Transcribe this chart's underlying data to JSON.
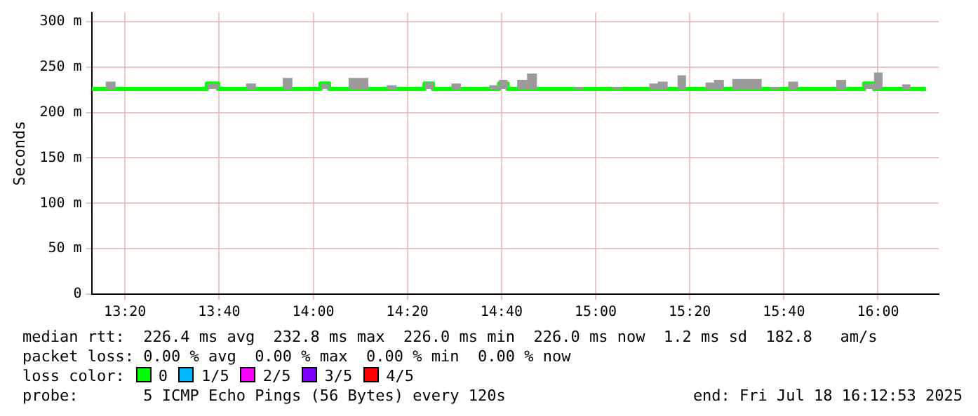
{
  "chart_data": {
    "type": "step",
    "ylabel": "Seconds",
    "xlim": [
      13.215,
      16.215
    ],
    "ylim": [
      0,
      310
    ],
    "xticks": [
      {
        "value": 13.3333,
        "label": "13:20"
      },
      {
        "value": 13.6667,
        "label": "13:40"
      },
      {
        "value": 14,
        "label": "14:00"
      },
      {
        "value": 14.3333,
        "label": "14:20"
      },
      {
        "value": 14.6667,
        "label": "14:40"
      },
      {
        "value": 15,
        "label": "15:00"
      },
      {
        "value": 15.3333,
        "label": "15:20"
      },
      {
        "value": 15.6667,
        "label": "15:40"
      },
      {
        "value": 16,
        "label": "16:00"
      }
    ],
    "yticks": [
      0,
      {
        "value": 50,
        "label": "50 m"
      },
      {
        "value": 100,
        "label": "100 m"
      },
      {
        "value": 150,
        "label": "150 m"
      },
      {
        "value": 200,
        "label": "200 m"
      },
      {
        "value": 250,
        "label": "250 m"
      },
      {
        "value": 300,
        "label": "300 m"
      }
    ],
    "grid": true,
    "legend": "bottom left",
    "legend_title": "loss color:",
    "line_style": "solid",
    "marker": "none",
    "series": [
      {
        "name": "0",
        "color": "#00ff00",
        "x": [
          13.215,
          13.265,
          13.3,
          13.623,
          13.663,
          13.762,
          13.797,
          13.892,
          13.926,
          14.026,
          14.056,
          14.125,
          14.195,
          14.26,
          14.295,
          14.394,
          14.424,
          14.489,
          14.523,
          14.623,
          14.658,
          14.688,
          14.722,
          14.757,
          14.792,
          14.921,
          14.956,
          15.056,
          15.091,
          15.19,
          15.22,
          15.255,
          15.29,
          15.32,
          15.389,
          15.419,
          15.454,
          15.484,
          15.588,
          15.618,
          15.653,
          15.682,
          15.717,
          15.852,
          15.887,
          15.951,
          15.986,
          16.016,
          16.085,
          16.115,
          16.17
        ],
        "values": [
          226,
          226,
          226,
          232,
          226,
          226,
          226,
          226,
          226,
          232,
          226,
          226,
          226,
          226,
          226,
          232,
          226,
          226,
          226,
          226,
          232,
          226,
          226,
          226,
          226,
          226,
          226,
          226,
          226,
          226,
          226,
          226,
          226,
          226,
          226,
          226,
          226,
          226,
          226,
          226,
          226,
          226,
          226,
          226,
          226,
          232,
          226,
          226,
          226,
          226,
          226
        ],
        "lower": [
          226,
          226,
          226,
          226,
          226,
          226,
          226,
          226,
          226,
          226,
          226,
          226,
          226,
          226,
          226,
          226,
          226,
          226,
          226,
          226,
          226,
          226,
          226,
          226,
          226,
          226,
          226,
          226,
          226,
          226,
          226,
          226,
          226,
          226,
          226,
          226,
          226,
          226,
          226,
          226,
          226,
          226,
          226,
          226,
          226,
          226,
          226,
          226,
          226,
          226,
          226
        ],
        "upper": [
          226,
          234,
          226,
          232,
          226,
          232,
          226,
          238,
          226,
          232,
          226,
          238,
          226,
          230,
          226,
          233,
          226,
          232,
          226,
          230,
          236,
          226,
          236,
          243,
          226,
          228,
          226,
          228,
          226,
          232,
          234,
          226,
          241,
          226,
          233,
          236,
          226,
          237,
          226,
          228,
          226,
          234,
          226,
          236,
          226,
          232,
          244,
          226,
          231,
          226,
          226
        ]
      },
      {
        "name": "1/5",
        "color": "#00b8ff"
      },
      {
        "name": "2/5",
        "color": "#ff00ff"
      },
      {
        "name": "3/5",
        "color": "#7e00ff"
      },
      {
        "name": "4/5",
        "color": "#ff0000"
      }
    ],
    "annotations": [
      "median rtt:  226.4 ms avg  232.8 ms max  226.0 ms min  226.0 ms now  1.2 ms sd  182.8   am/s",
      "packet loss: 0.00 % avg  0.00 % max  0.00 % min  0.00 % now",
      "probe:       5 ICMP Echo Pings (56 Bytes) every 120s",
      "end: Fri Jul 18 16:12:53 2025"
    ]
  }
}
